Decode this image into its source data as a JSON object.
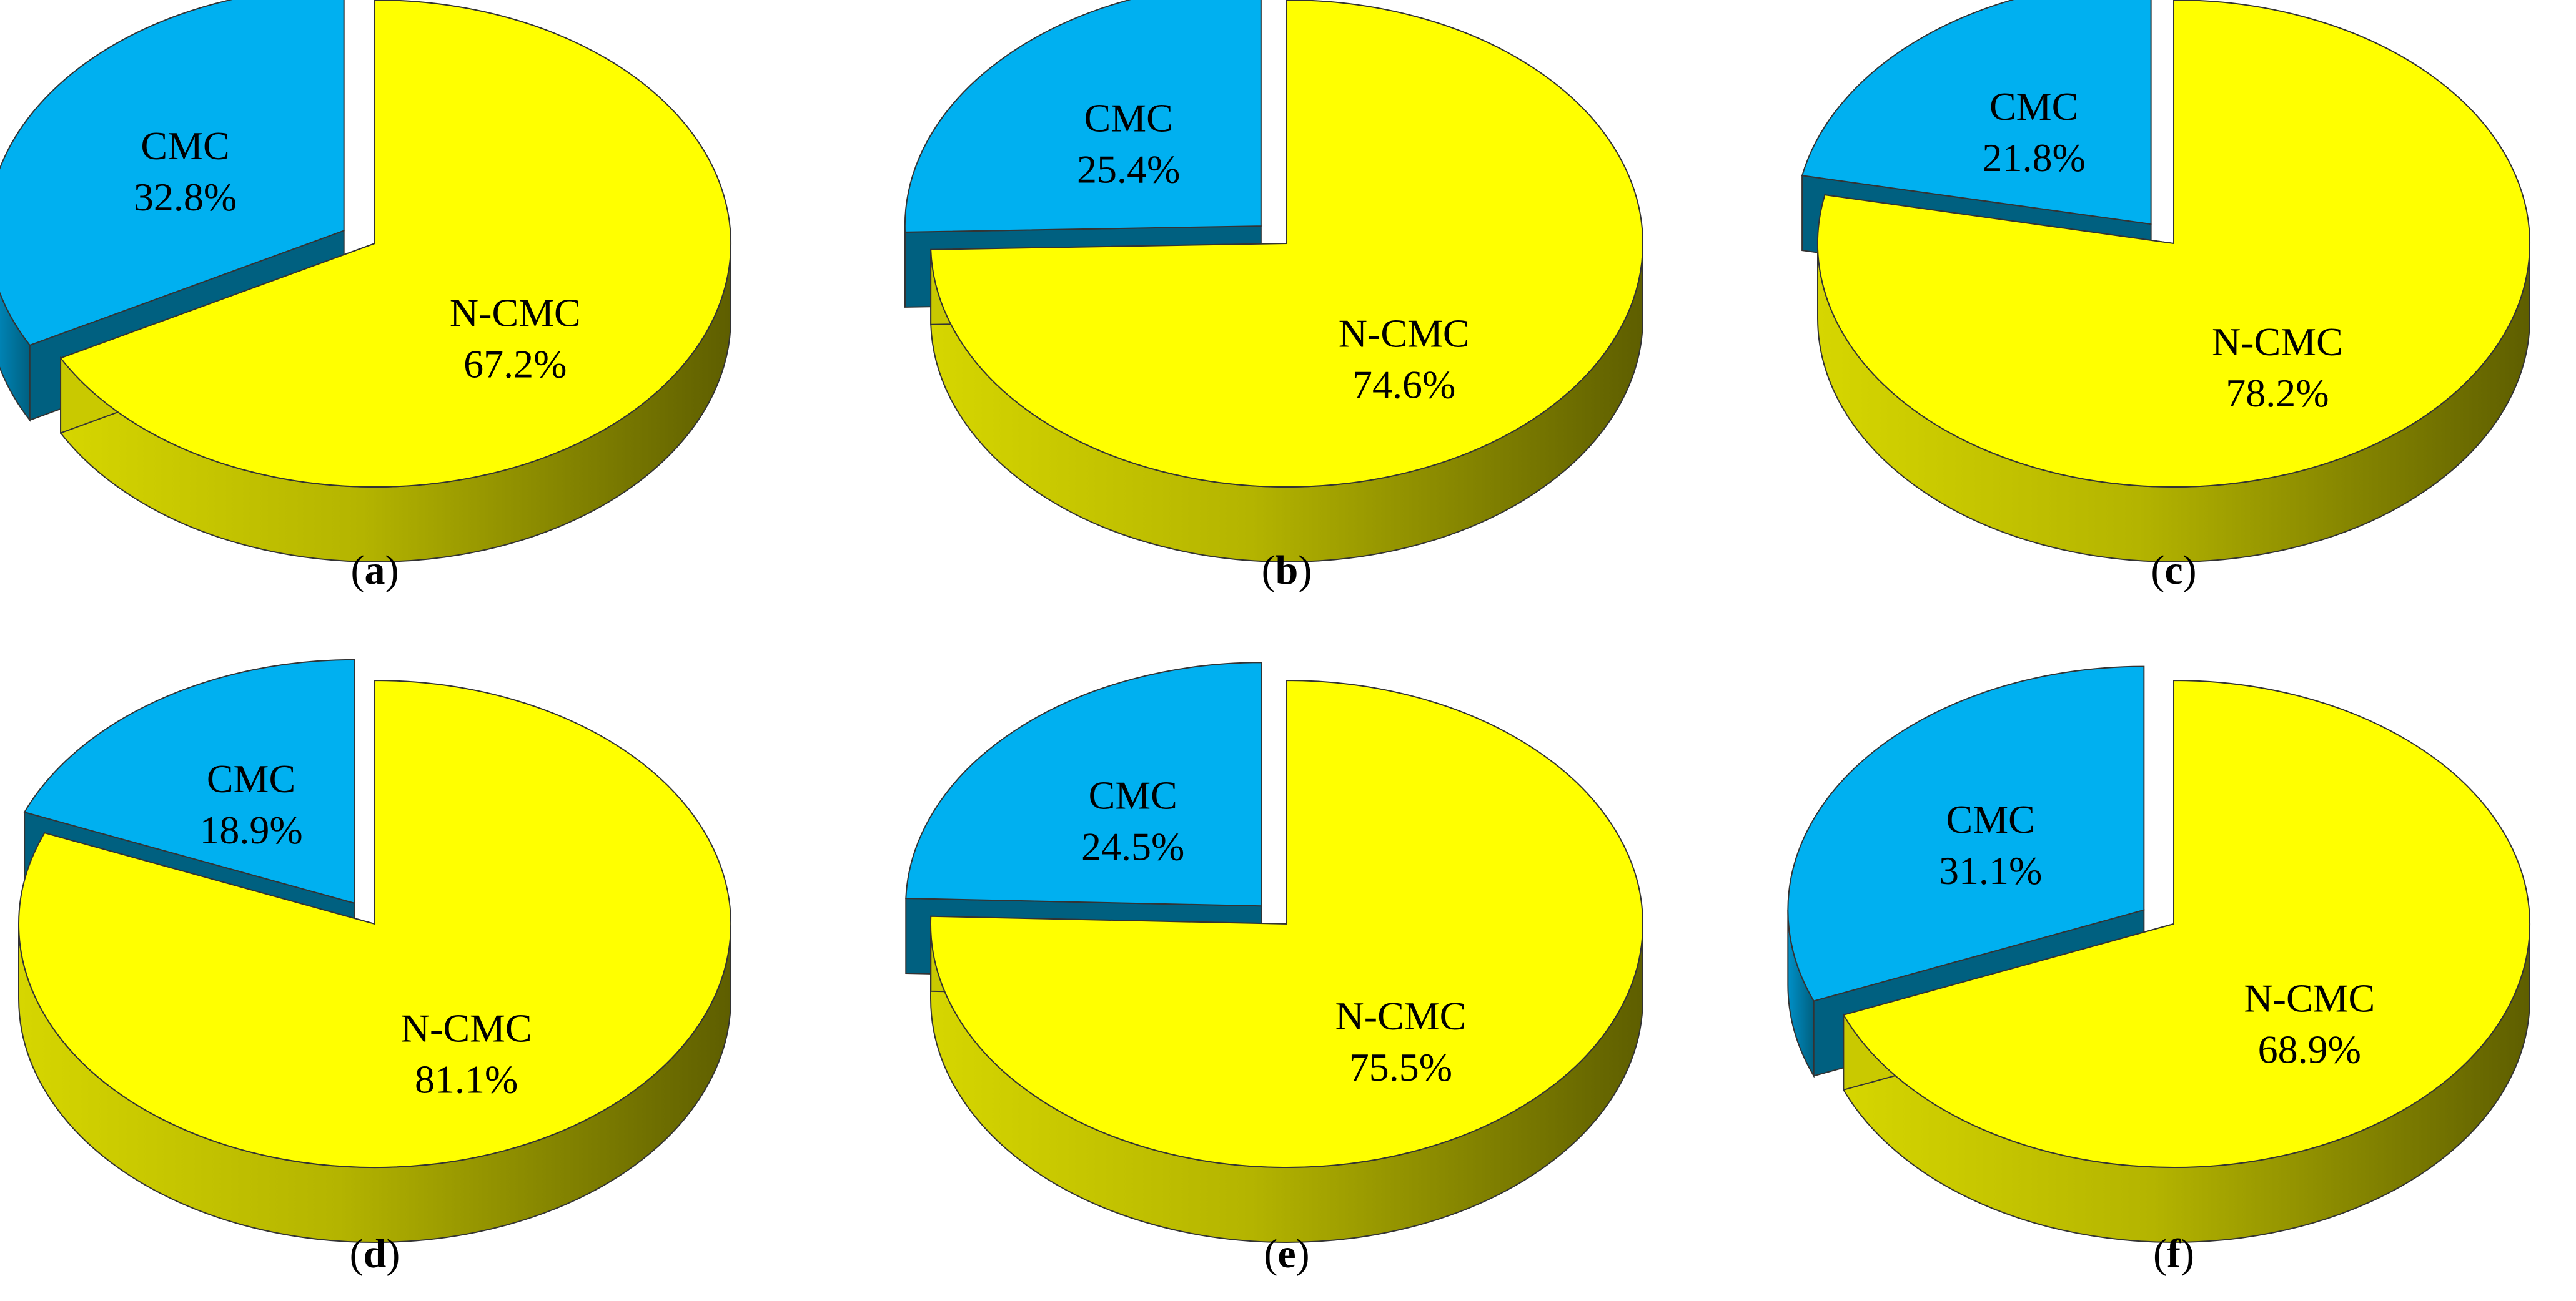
{
  "chart_data": [
    {
      "type": "pie",
      "panel_label": "a",
      "categories": [
        "CMC",
        "N-CMC"
      ],
      "values": [
        32.8,
        67.2
      ],
      "slice_labels": [
        "CMC",
        "N-CMC"
      ],
      "value_labels": [
        "32.8%",
        "67.2%"
      ],
      "exploded": "CMC",
      "three_d": true
    },
    {
      "type": "pie",
      "panel_label": "b",
      "categories": [
        "CMC",
        "N-CMC"
      ],
      "values": [
        25.4,
        74.6
      ],
      "slice_labels": [
        "CMC",
        "N-CMC"
      ],
      "value_labels": [
        "25.4%",
        "74.6%"
      ],
      "exploded": "CMC",
      "three_d": true
    },
    {
      "type": "pie",
      "panel_label": "c",
      "categories": [
        "CMC",
        "N-CMC"
      ],
      "values": [
        21.8,
        78.2
      ],
      "slice_labels": [
        "CMC",
        "N-CMC"
      ],
      "value_labels": [
        "21.8%",
        "78.2%"
      ],
      "exploded": "CMC",
      "three_d": true
    },
    {
      "type": "pie",
      "panel_label": "d",
      "categories": [
        "CMC",
        "N-CMC"
      ],
      "values": [
        18.9,
        81.1
      ],
      "slice_labels": [
        "CMC",
        "N-CMC"
      ],
      "value_labels": [
        "18.9%",
        "81.1%"
      ],
      "exploded": "CMC",
      "three_d": true
    },
    {
      "type": "pie",
      "panel_label": "e",
      "categories": [
        "CMC",
        "N-CMC"
      ],
      "values": [
        24.5,
        75.5
      ],
      "slice_labels": [
        "CMC",
        "N-CMC"
      ],
      "value_labels": [
        "24.5%",
        "75.5%"
      ],
      "exploded": "CMC",
      "three_d": true
    },
    {
      "type": "pie",
      "panel_label": "f",
      "categories": [
        "CMC",
        "N-CMC"
      ],
      "values": [
        31.1,
        68.9
      ],
      "slice_labels": [
        "CMC",
        "N-CMC"
      ],
      "value_labels": [
        "31.1%",
        "68.9%"
      ],
      "exploded": "CMC",
      "three_d": true
    }
  ],
  "colors": {
    "cmc_top": "#00B0F0",
    "cmc_side": "#006080",
    "ncmc_top": "#FFFF00",
    "ncmc_side_light": "#D6D600",
    "ncmc_side_dark": "#5E5E00",
    "outline": "#333333",
    "text": "#000000"
  }
}
